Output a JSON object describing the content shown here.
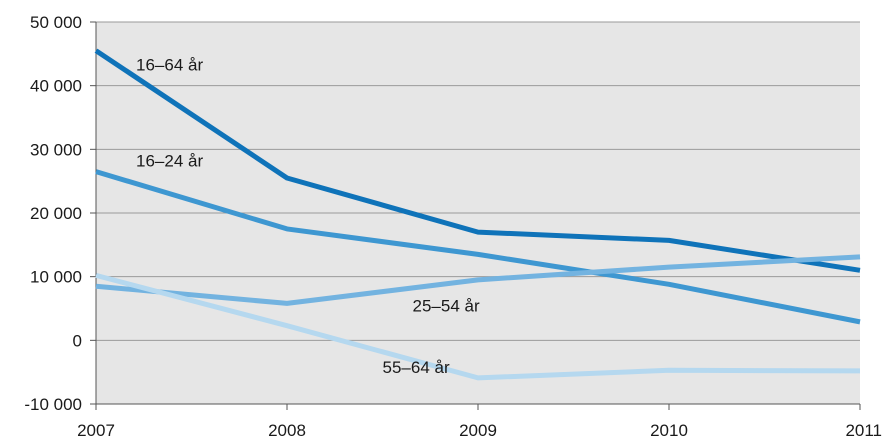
{
  "chart_data": {
    "type": "line",
    "categories": [
      "2007",
      "2008",
      "2009",
      "2010",
      "2011"
    ],
    "ylim": [
      -10000,
      50000
    ],
    "yticks": [
      -10000,
      0,
      10000,
      20000,
      30000,
      40000,
      50000
    ],
    "ytick_labels": [
      "-10 000",
      "0",
      "10 000",
      "20 000",
      "30 000",
      "40 000",
      "50 000"
    ],
    "grid": true,
    "series": [
      {
        "name": "16–64 år",
        "values": [
          45500,
          25500,
          17000,
          15700,
          11000
        ],
        "color": "#0f73b9"
      },
      {
        "name": "16–24 år",
        "values": [
          26500,
          17500,
          13500,
          8800,
          2900
        ],
        "color": "#3e97d1"
      },
      {
        "name": "25–54 år",
        "values": [
          8500,
          5800,
          9500,
          11500,
          13100
        ],
        "color": "#73b3e0"
      },
      {
        "name": "55–64 år",
        "values": [
          10200,
          2300,
          -5900,
          -4700,
          -4800
        ],
        "color": "#b5d8ef"
      }
    ]
  }
}
